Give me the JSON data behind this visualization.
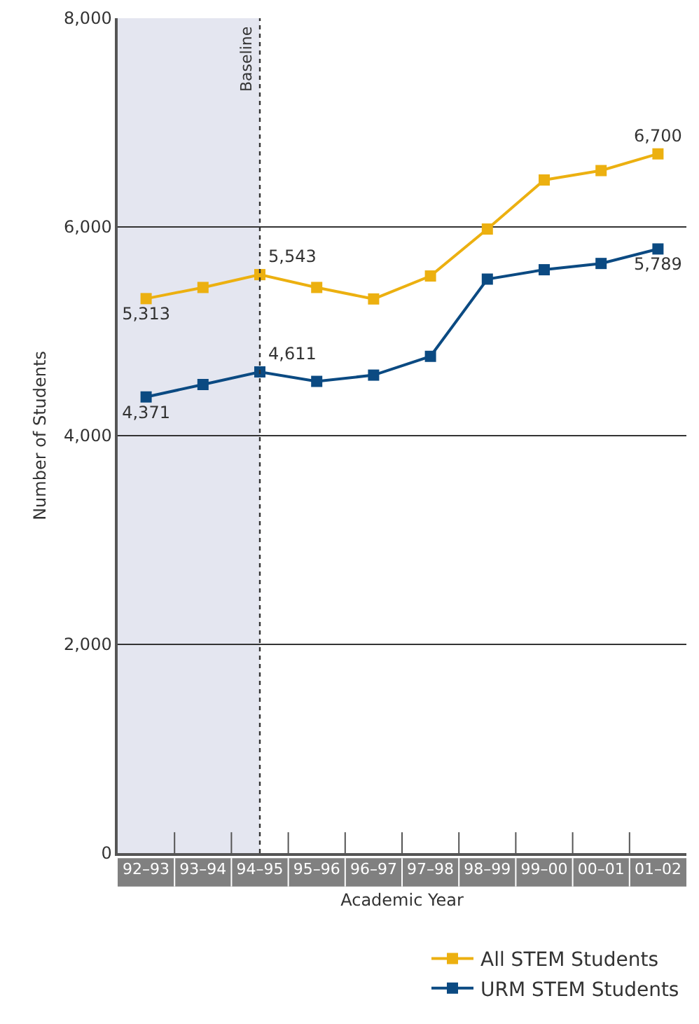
{
  "chart_data": {
    "type": "line",
    "xlabel": "Academic Year",
    "ylabel": "Number of Students",
    "categories": [
      "92–93",
      "93–94",
      "94–95",
      "95–96",
      "96–97",
      "97–98",
      "98–99",
      "99–00",
      "00–01",
      "01–02"
    ],
    "series": [
      {
        "name": "All STEM Students",
        "color": "#ecb010",
        "values": [
          5313,
          5420,
          5543,
          5420,
          5310,
          5530,
          5980,
          6450,
          6540,
          6700
        ],
        "value_labels": [
          "5,313",
          null,
          "5,543",
          null,
          null,
          null,
          null,
          null,
          null,
          "6,700"
        ]
      },
      {
        "name": "URM STEM Students",
        "color": "#0b4a82",
        "values": [
          4371,
          4490,
          4611,
          4520,
          4580,
          4760,
          5500,
          5590,
          5650,
          5789
        ],
        "value_labels": [
          "4,371",
          null,
          "4,611",
          null,
          null,
          null,
          null,
          null,
          null,
          "5,789"
        ]
      }
    ],
    "ylim": [
      0,
      8000
    ],
    "yticks": [
      0,
      {
        "value": 2000,
        "label": "2,000"
      },
      {
        "value": 4000,
        "label": "4,000"
      },
      {
        "value": 6000,
        "label": "6,000"
      },
      {
        "value": 8000,
        "label": "8,000"
      }
    ],
    "grid": "y",
    "legend": "bottom right",
    "marker": "square",
    "line_style": "solid",
    "bands": [
      {
        "axis": "x",
        "from": "92–93",
        "to": "94–95",
        "color": "#e4e6f0"
      }
    ],
    "ref_lines": [
      {
        "axis": "x",
        "value": "94–95",
        "label": "Baseline",
        "line_style": "dotted"
      }
    ]
  }
}
